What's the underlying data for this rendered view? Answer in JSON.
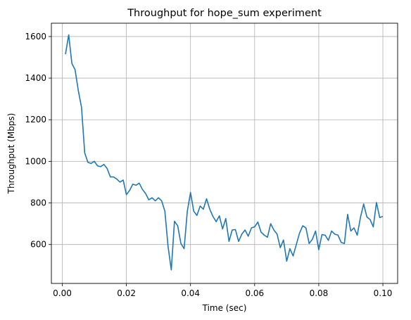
{
  "chart_data": {
    "type": "line",
    "title": "Throughput for hope_sum experiment",
    "xlabel": "Time (sec)",
    "ylabel": "Throughput (Mbps)",
    "xlim": [
      -0.0034,
      0.1046
    ],
    "ylim": [
      413,
      1664
    ],
    "xticks": [
      0.0,
      0.02,
      0.04,
      0.06,
      0.08,
      0.1
    ],
    "xtick_labels": [
      "0.00",
      "0.02",
      "0.04",
      "0.06",
      "0.08",
      "0.10"
    ],
    "yticks": [
      600,
      800,
      1000,
      1200,
      1400,
      1600
    ],
    "ytick_labels": [
      "600",
      "800",
      "1000",
      "1200",
      "1400",
      "1600"
    ],
    "grid": true,
    "line_color": "#1f77b4",
    "series": [
      {
        "x": [
          0.001,
          0.002,
          0.003,
          0.004,
          0.005,
          0.006,
          0.007,
          0.008,
          0.009,
          0.01,
          0.011,
          0.012,
          0.013,
          0.014,
          0.015,
          0.016,
          0.017,
          0.018,
          0.019,
          0.02,
          0.021,
          0.022,
          0.023,
          0.024,
          0.025,
          0.026,
          0.027,
          0.028,
          0.029,
          0.03,
          0.031,
          0.032,
          0.033,
          0.034,
          0.035,
          0.036,
          0.037,
          0.038,
          0.039,
          0.04,
          0.041,
          0.042,
          0.043,
          0.044,
          0.045,
          0.046,
          0.047,
          0.048,
          0.049,
          0.05,
          0.051,
          0.052,
          0.053,
          0.054,
          0.055,
          0.056,
          0.057,
          0.058,
          0.059,
          0.06,
          0.061,
          0.062,
          0.063,
          0.064,
          0.065,
          0.066,
          0.067,
          0.068,
          0.069,
          0.07,
          0.071,
          0.072,
          0.073,
          0.074,
          0.075,
          0.076,
          0.077,
          0.078,
          0.079,
          0.08,
          0.081,
          0.082,
          0.083,
          0.084,
          0.085,
          0.086,
          0.087,
          0.088,
          0.089,
          0.09,
          0.091,
          0.092,
          0.093,
          0.094,
          0.095,
          0.096,
          0.097,
          0.098,
          0.099,
          0.1
        ],
        "values": [
          1515,
          1608,
          1470,
          1440,
          1340,
          1260,
          1040,
          995,
          990,
          1000,
          978,
          975,
          985,
          965,
          925,
          925,
          915,
          900,
          910,
          840,
          860,
          890,
          885,
          895,
          865,
          845,
          815,
          825,
          810,
          825,
          810,
          760,
          590,
          478,
          712,
          690,
          605,
          580,
          760,
          850,
          760,
          740,
          785,
          770,
          820,
          770,
          735,
          710,
          738,
          675,
          725,
          615,
          670,
          672,
          615,
          650,
          670,
          640,
          680,
          685,
          708,
          660,
          645,
          635,
          700,
          670,
          650,
          585,
          622,
          520,
          580,
          545,
          600,
          655,
          690,
          680,
          605,
          625,
          665,
          575,
          648,
          645,
          620,
          665,
          650,
          645,
          610,
          605,
          745,
          665,
          680,
          645,
          730,
          795,
          733,
          720,
          685,
          802,
          730,
          735
        ]
      }
    ]
  }
}
